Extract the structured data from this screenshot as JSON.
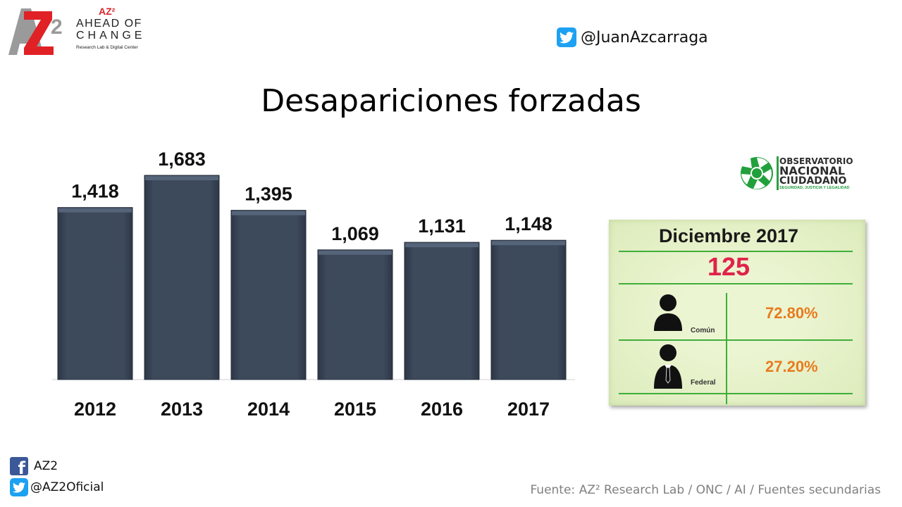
{
  "brand": {
    "az_tag": "AZ²",
    "line1": "AHEAD OF",
    "line2": "CHANGE",
    "subtitle": "Research Lab & Digital Center",
    "mark": "AZ2"
  },
  "header": {
    "twitter_handle": "@JuanAzcarraga",
    "twitter_icon": "twitter-icon"
  },
  "chart_data": {
    "type": "bar",
    "title": "Desapariciones forzadas",
    "categories": [
      "2012",
      "2013",
      "2014",
      "2015",
      "2016",
      "2017"
    ],
    "values": [
      1418,
      1683,
      1395,
      1069,
      1131,
      1148
    ],
    "value_labels": [
      "1,418",
      "1,683",
      "1,395",
      "1,069",
      "1,131",
      "1,148"
    ],
    "ylim": [
      0,
      1683
    ],
    "grid": false,
    "bar_color": "#3a4658"
  },
  "onc_logo": {
    "line1": "OBSERVATORIO",
    "line2": "NACIONAL",
    "line3": "CIUDADANO",
    "tagline": "SEGURIDAD, JUSTICIA Y LEGALIDAD"
  },
  "card": {
    "title": "Diciembre 2017",
    "total": "125",
    "rows": [
      {
        "label": "Común",
        "value": "72.80%",
        "icon": "person-casual-icon"
      },
      {
        "label": "Federal",
        "value": "27.20%",
        "icon": "person-suit-icon"
      }
    ]
  },
  "footer": {
    "facebook": "AZ2",
    "twitter": "@AZ2Oficial",
    "source": "Fuente: AZ² Research Lab / ONC  / AI / Fuentes secundarias"
  },
  "colors": {
    "accent_red": "#e0234a",
    "accent_orange": "#e87b1e",
    "green": "#3fae3a",
    "twitter_blue": "#1da1f2",
    "facebook_blue": "#3b5998"
  }
}
